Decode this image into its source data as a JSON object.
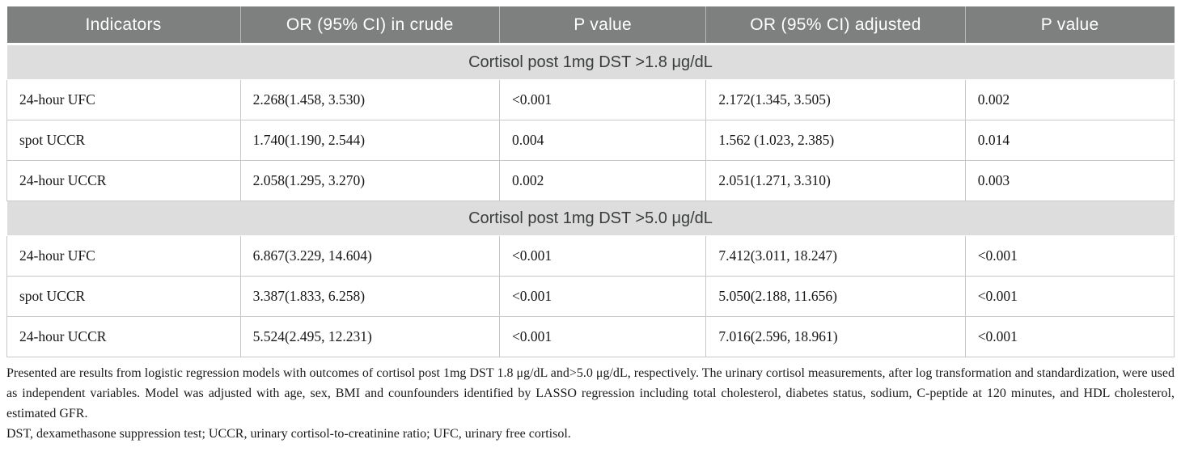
{
  "table": {
    "columns": [
      "Indicators",
      "OR (95% CI) in crude",
      "P value",
      "OR (95% CI) adjusted",
      "P value"
    ],
    "sections": [
      {
        "title": "Cortisol post 1mg DST >1.8 μg/dL",
        "rows": [
          {
            "indicator": "24-hour UFC",
            "or_crude": "2.268(1.458, 3.530)",
            "p_crude": "<0.001",
            "or_adjusted": "2.172(1.345, 3.505)",
            "p_adjusted": "0.002"
          },
          {
            "indicator": "spot UCCR",
            "or_crude": "1.740(1.190, 2.544)",
            "p_crude": "0.004",
            "or_adjusted": "1.562 (1.023, 2.385)",
            "p_adjusted": "0.014"
          },
          {
            "indicator": "24-hour UCCR",
            "or_crude": "2.058(1.295, 3.270)",
            "p_crude": "0.002",
            "or_adjusted": "2.051(1.271, 3.310)",
            "p_adjusted": "0.003"
          }
        ]
      },
      {
        "title": "Cortisol post 1mg DST >5.0 μg/dL",
        "rows": [
          {
            "indicator": "24-hour UFC",
            "or_crude": "6.867(3.229, 14.604)",
            "p_crude": "<0.001",
            "or_adjusted": "7.412(3.011, 18.247)",
            "p_adjusted": "<0.001"
          },
          {
            "indicator": "spot UCCR",
            "or_crude": "3.387(1.833, 6.258)",
            "p_crude": "<0.001",
            "or_adjusted": "5.050(2.188, 11.656)",
            "p_adjusted": "<0.001"
          },
          {
            "indicator": "24-hour UCCR",
            "or_crude": "5.524(2.495, 12.231)",
            "p_crude": "<0.001",
            "or_adjusted": "7.016(2.596, 18.961)",
            "p_adjusted": "<0.001"
          }
        ]
      }
    ]
  },
  "footnotes": {
    "methods": "Presented are results from logistic regression models with outcomes of cortisol post 1mg DST 1.8 μg/dL and>5.0 μg/dL, respectively. The urinary cortisol measurements, after log transformation and standardization, were used as independent variables. Model was adjusted with age, sex, BMI and counfounders identified by LASSO regression including total cholesterol, diabetes status, sodium, C-peptide at 120 minutes, and HDL cholesterol, estimated GFR.",
    "abbreviations": "DST, dexamethasone suppression test; UCCR, urinary cortisol-to-creatinine ratio; UFC, urinary free cortisol."
  },
  "colors": {
    "header_bg": "#7d807e",
    "header_text": "#ffffff",
    "section_bg": "#dcdddc",
    "section_text": "#3a3d3c",
    "body_text": "#161616",
    "border": "#c6c9c8"
  }
}
